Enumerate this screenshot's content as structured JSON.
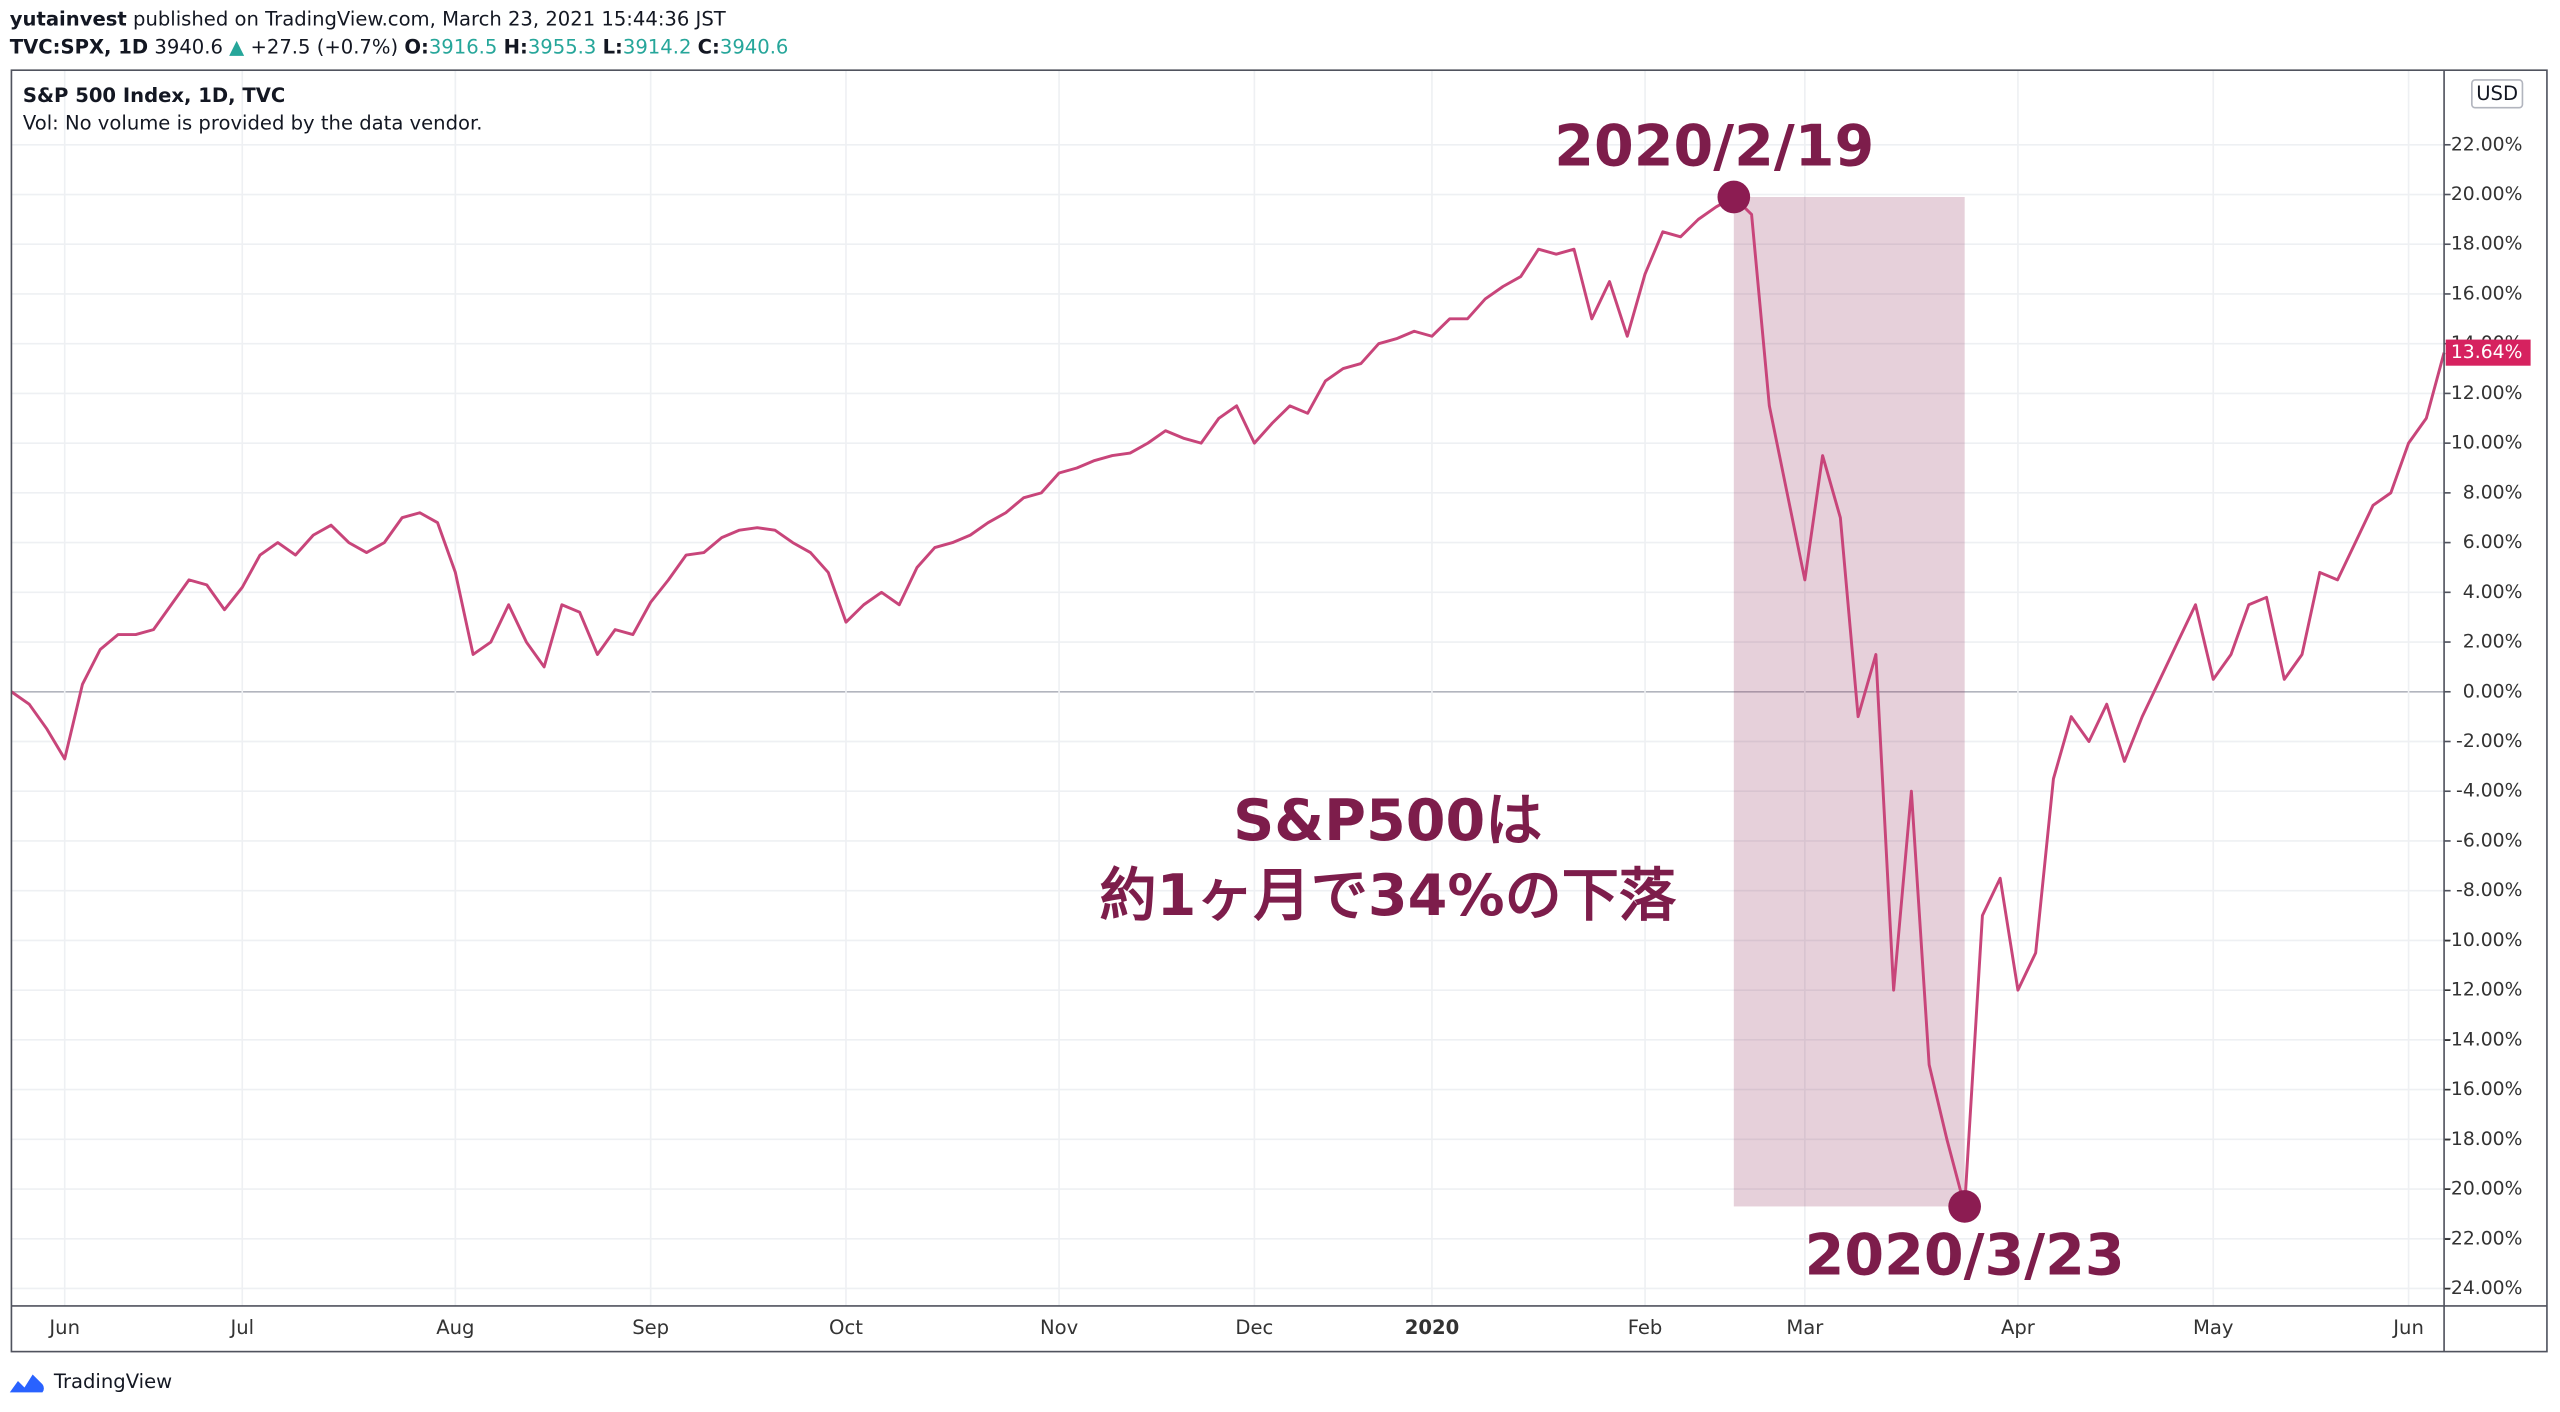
{
  "header": {
    "publisher": "yutainvest",
    "published": "published on TradingView.com, March 23, 2021 15:44:36 JST",
    "symbol": "TVC:SPX, 1D",
    "last": "3940.6",
    "arrow": "▲",
    "change": "+27.5 (+0.7%)",
    "o_label": "O:",
    "o": "3916.5",
    "h_label": "H:",
    "h": "3955.3",
    "l_label": "L:",
    "l": "3914.2",
    "c_label": "C:",
    "c": "3940.6"
  },
  "currency": "USD",
  "footer": {
    "brand": "TradingView"
  },
  "chart_data": {
    "type": "line",
    "subtitle": "Vol: No volume is provided by the data vendor.",
    "categories": [
      null,
      null,
      null,
      "Jun",
      null,
      null,
      null,
      null,
      null,
      null,
      null,
      null,
      null,
      "Jul",
      null,
      null,
      null,
      null,
      null,
      null,
      null,
      null,
      null,
      null,
      null,
      "Aug",
      null,
      null,
      null,
      null,
      null,
      null,
      null,
      null,
      null,
      null,
      "Sep",
      null,
      null,
      null,
      null,
      null,
      null,
      null,
      null,
      null,
      null,
      "Oct",
      null,
      null,
      null,
      null,
      null,
      null,
      null,
      null,
      null,
      null,
      null,
      "Nov",
      null,
      null,
      null,
      null,
      null,
      null,
      null,
      null,
      null,
      null,
      "Dec",
      null,
      null,
      null,
      null,
      null,
      null,
      null,
      null,
      null,
      "2020",
      null,
      null,
      null,
      null,
      null,
      null,
      null,
      null,
      null,
      null,
      null,
      "Feb",
      null,
      null,
      null,
      null,
      null,
      null,
      null,
      null,
      "Mar",
      null,
      null,
      null,
      null,
      null,
      null,
      null,
      null,
      null,
      null,
      null,
      "Apr",
      null,
      null,
      null,
      null,
      null,
      null,
      null,
      null,
      null,
      null,
      "May",
      null,
      null,
      null,
      null,
      null,
      null,
      null,
      null,
      null,
      null,
      "Jun",
      null,
      null
    ],
    "series": [
      {
        "name": "S&P 500 Index, 1D, TVC",
        "color": "#c8457a",
        "values": [
          0.0,
          -0.5,
          -1.5,
          -2.7,
          0.3,
          1.7,
          2.3,
          2.3,
          2.5,
          3.5,
          4.5,
          4.3,
          3.3,
          4.2,
          5.5,
          6.0,
          5.5,
          6.3,
          6.7,
          6.0,
          5.6,
          6.0,
          7.0,
          7.2,
          6.8,
          4.8,
          1.5,
          2.0,
          3.5,
          2.0,
          1.0,
          3.5,
          3.2,
          1.5,
          2.5,
          2.3,
          3.6,
          4.5,
          5.5,
          5.6,
          6.2,
          6.5,
          6.6,
          6.5,
          6.0,
          5.6,
          4.8,
          2.8,
          3.5,
          4.0,
          3.5,
          5.0,
          5.8,
          6.0,
          6.3,
          6.8,
          7.2,
          7.8,
          8.0,
          8.8,
          9.0,
          9.3,
          9.5,
          9.6,
          10.0,
          10.5,
          10.2,
          10.0,
          11.0,
          11.5,
          10.0,
          10.8,
          11.5,
          11.2,
          12.5,
          13.0,
          13.2,
          14.0,
          14.2,
          14.5,
          14.3,
          15.0,
          15.0,
          15.8,
          16.3,
          16.7,
          17.8,
          17.6,
          17.8,
          15.0,
          16.5,
          14.3,
          16.8,
          18.5,
          18.3,
          19.0,
          19.5,
          19.9,
          19.2,
          11.5,
          8.0,
          4.5,
          9.5,
          7.0,
          -1.0,
          1.5,
          -12.0,
          -4.0,
          -15.0,
          -18.0,
          -20.7,
          -9.0,
          -7.5,
          -12.0,
          -10.5,
          -3.5,
          -1.0,
          -2.0,
          -0.5,
          -2.8,
          -1.0,
          0.5,
          2.0,
          3.5,
          0.5,
          1.5,
          3.5,
          3.8,
          0.5,
          1.5,
          4.8,
          4.5,
          6.0,
          7.5,
          8.0,
          10.0,
          11.0,
          13.64
        ]
      }
    ],
    "price_tag": {
      "value": 13.64,
      "label": "13.64%"
    },
    "ylim": [
      -24.7,
      25
    ],
    "yticks": [
      {
        "value": -24,
        "label": "-24.00%"
      },
      {
        "value": -22,
        "label": "-22.00%"
      },
      {
        "value": -20,
        "label": "-20.00%"
      },
      {
        "value": -18,
        "label": "-18.00%"
      },
      {
        "value": -16,
        "label": "-16.00%"
      },
      {
        "value": -14,
        "label": "-14.00%"
      },
      {
        "value": -12,
        "label": "-12.00%"
      },
      {
        "value": -10,
        "label": "-10.00%"
      },
      {
        "value": -8,
        "label": "-8.00%"
      },
      {
        "value": -6,
        "label": "-6.00%"
      },
      {
        "value": -4,
        "label": "-4.00%"
      },
      {
        "value": -2,
        "label": "-2.00%"
      },
      {
        "value": 0,
        "label": "0.00%"
      },
      {
        "value": 2,
        "label": "2.00%"
      },
      {
        "value": 4,
        "label": "4.00%"
      },
      {
        "value": 6,
        "label": "6.00%"
      },
      {
        "value": 8,
        "label": "8.00%"
      },
      {
        "value": 10,
        "label": "10.00%"
      },
      {
        "value": 12,
        "label": "12.00%"
      },
      {
        "value": 14,
        "label": "14.00%"
      },
      {
        "value": 16,
        "label": "16.00%"
      },
      {
        "value": 18,
        "label": "18.00%"
      },
      {
        "value": 20,
        "label": "20.00%"
      },
      {
        "value": 22,
        "label": "22.00%"
      }
    ],
    "grid": true,
    "annotations": {
      "peak": "2020/2/19",
      "trough": "2020/3/23",
      "note": [
        "S&P500は",
        "約1ヶ月で34%の下落"
      ]
    }
  }
}
